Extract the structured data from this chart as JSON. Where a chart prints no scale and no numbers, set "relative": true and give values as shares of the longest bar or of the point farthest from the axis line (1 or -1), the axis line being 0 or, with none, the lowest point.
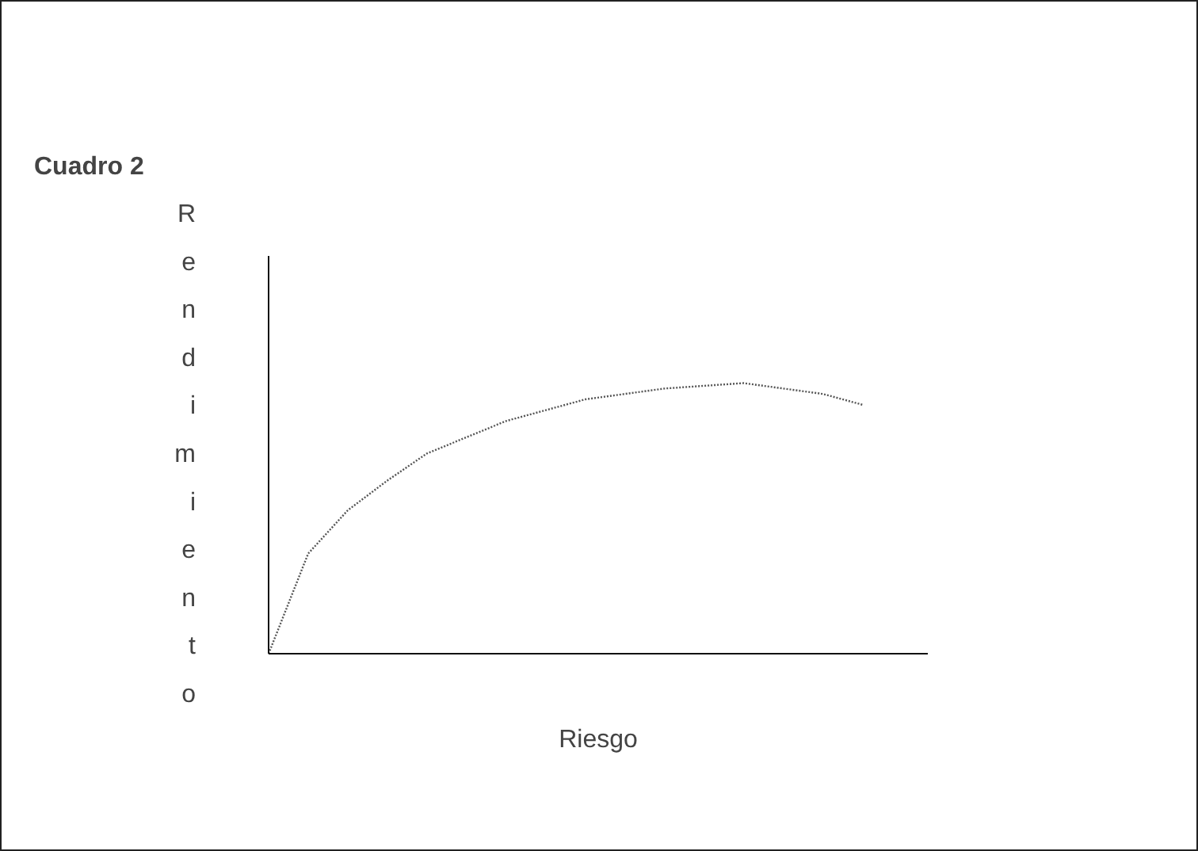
{
  "chart_data": {
    "type": "line",
    "title": "Cuadro 2",
    "xlabel": "Riesgo",
    "ylabel": "Rendimiento",
    "relative": true,
    "categories": [
      null,
      null,
      null,
      null,
      null,
      null,
      null,
      null,
      null,
      null,
      null,
      null,
      null,
      null,
      null,
      null
    ],
    "series": [
      {
        "color": "#555555",
        "values": [
          0,
          0.37,
          0.53,
          0.64,
          0.74,
          0.8,
          0.86,
          0.9,
          0.94,
          0.96,
          0.98,
          0.99,
          1,
          0.98,
          0.96,
          0.92
        ]
      }
    ],
    "line_style": "dotted",
    "grid": false,
    "tick_labels": false,
    "marker": "none"
  }
}
